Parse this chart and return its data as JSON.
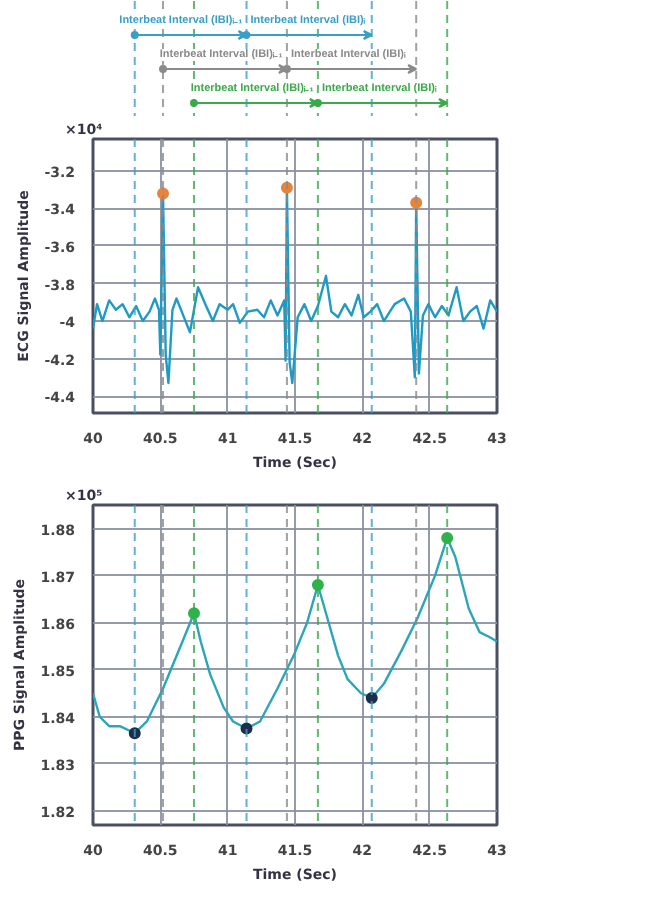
{
  "chart_data": [
    {
      "type": "line",
      "xlabel": "Time (Sec)",
      "ylabel": "ECG Signal Amplitude",
      "xlim": [
        40,
        43
      ],
      "ylim": [
        -4.49,
        -3.03
      ],
      "xticks": [
        40,
        40.5,
        41,
        41.5,
        42,
        42.5,
        43
      ],
      "yticks": [
        -3.2,
        -3.4,
        -3.6,
        -3.8,
        -4,
        -4.2,
        -4.4
      ],
      "grid": true,
      "line_style": "solid",
      "annotations": [
        "×10⁴",
        "Interbeat Interval (IBI)ᵢ₋₁",
        "Interbeat Interval (IBI)ᵢ",
        "Interbeat Interval (IBI)ᵢ₋₁",
        "Interbeat Interval (IBI)ᵢ",
        "Interbeat Interval (IBI)ᵢ₋₁",
        "Interbeat Interval (IBI)ᵢ"
      ],
      "ref_lines": [
        {
          "axis": "x",
          "value": 40.31,
          "color": "#3a9fc8",
          "line_style": "dashed"
        },
        {
          "axis": "x",
          "value": 41.14,
          "color": "#3a9fc8",
          "line_style": "dashed"
        },
        {
          "axis": "x",
          "value": 42.07,
          "color": "#3a9fc8",
          "line_style": "dashed"
        },
        {
          "axis": "x",
          "value": 40.52,
          "color": "#8a8a8a",
          "line_style": "dashed"
        },
        {
          "axis": "x",
          "value": 41.44,
          "color": "#8a8a8a",
          "line_style": "dashed"
        },
        {
          "axis": "x",
          "value": 42.4,
          "color": "#8a8a8a",
          "line_style": "dashed"
        },
        {
          "axis": "x",
          "value": 40.75,
          "color": "#3aaa4a",
          "line_style": "dashed"
        },
        {
          "axis": "x",
          "value": 41.67,
          "color": "#3aaa4a",
          "line_style": "dashed"
        },
        {
          "axis": "x",
          "value": 42.63,
          "color": "#3aaa4a",
          "line_style": "dashed"
        }
      ],
      "series": [
        {
          "color": "#1f9ac4",
          "x": [
            40.0,
            40.03,
            40.07,
            40.12,
            40.17,
            40.22,
            40.27,
            40.32,
            40.37,
            40.42,
            40.46,
            40.49,
            40.5,
            40.52,
            40.54,
            40.56,
            40.59,
            40.62,
            40.67,
            40.72,
            40.78,
            40.84,
            40.89,
            40.94,
            41.0,
            41.04,
            41.09,
            41.15,
            41.22,
            41.27,
            41.32,
            41.37,
            41.42,
            41.43,
            41.44,
            41.46,
            41.48,
            41.52,
            41.57,
            41.62,
            41.67,
            41.73,
            41.77,
            41.82,
            41.87,
            41.92,
            41.97,
            42.01,
            42.06,
            42.11,
            42.16,
            42.24,
            42.31,
            42.36,
            42.39,
            42.4,
            42.42,
            42.45,
            42.49,
            42.54,
            42.59,
            42.64,
            42.7,
            42.75,
            42.8,
            42.85,
            42.9,
            42.95,
            43.0
          ],
          "values": [
            -4.04,
            -3.91,
            -4.0,
            -3.89,
            -3.94,
            -3.91,
            -3.98,
            -3.92,
            -4.0,
            -3.95,
            -3.88,
            -3.94,
            -4.18,
            -3.32,
            -4.18,
            -4.33,
            -3.94,
            -3.88,
            -3.97,
            -4.06,
            -3.82,
            -3.92,
            -4.0,
            -3.91,
            -3.94,
            -3.91,
            -4.01,
            -3.95,
            -3.94,
            -3.98,
            -3.89,
            -3.97,
            -3.89,
            -4.21,
            -3.29,
            -4.22,
            -4.33,
            -3.98,
            -3.91,
            -4.0,
            -3.92,
            -3.76,
            -3.95,
            -3.98,
            -3.91,
            -3.97,
            -3.86,
            -3.98,
            -3.95,
            -3.91,
            -4.0,
            -3.91,
            -3.88,
            -3.95,
            -4.3,
            -3.37,
            -4.28,
            -3.97,
            -3.91,
            -3.98,
            -3.92,
            -3.97,
            -3.82,
            -4.0,
            -3.95,
            -3.92,
            -4.04,
            -3.89,
            -3.95
          ]
        },
        {
          "type": "scatter",
          "marker": "circle",
          "color": "#e8833a",
          "x": [
            40.52,
            41.44,
            42.4
          ],
          "values": [
            -3.32,
            -3.29,
            -3.37
          ]
        }
      ]
    },
    {
      "type": "line",
      "xlabel": "Time (Sec)",
      "ylabel": "PPG Signal Amplitude",
      "xlim": [
        40,
        43
      ],
      "ylim": [
        1.817,
        1.885
      ],
      "xticks": [
        40,
        40.5,
        41,
        41.5,
        42,
        42.5,
        43
      ],
      "yticks": [
        1.82,
        1.83,
        1.84,
        1.85,
        1.86,
        1.87,
        1.88
      ],
      "grid": true,
      "line_style": "solid",
      "annotations": [
        "×10⁵"
      ],
      "ref_lines": [
        {
          "axis": "x",
          "value": 40.31,
          "color": "#3a9fc8",
          "line_style": "dashed"
        },
        {
          "axis": "x",
          "value": 41.14,
          "color": "#3a9fc8",
          "line_style": "dashed"
        },
        {
          "axis": "x",
          "value": 42.07,
          "color": "#3a9fc8",
          "line_style": "dashed"
        },
        {
          "axis": "x",
          "value": 40.52,
          "color": "#8a8a8a",
          "line_style": "dashed"
        },
        {
          "axis": "x",
          "value": 41.44,
          "color": "#8a8a8a",
          "line_style": "dashed"
        },
        {
          "axis": "x",
          "value": 42.4,
          "color": "#8a8a8a",
          "line_style": "dashed"
        },
        {
          "axis": "x",
          "value": 40.75,
          "color": "#3aaa4a",
          "line_style": "dashed"
        },
        {
          "axis": "x",
          "value": 41.67,
          "color": "#3aaa4a",
          "line_style": "dashed"
        },
        {
          "axis": "x",
          "value": 42.63,
          "color": "#3aaa4a",
          "line_style": "dashed"
        }
      ],
      "series": [
        {
          "color": "#2aa6b8",
          "x": [
            40.0,
            40.05,
            40.12,
            40.2,
            40.31,
            40.4,
            40.52,
            40.65,
            40.75,
            40.8,
            40.87,
            40.97,
            41.04,
            41.14,
            41.24,
            41.37,
            41.49,
            41.59,
            41.67,
            41.72,
            41.82,
            41.89,
            41.99,
            42.07,
            42.16,
            42.29,
            42.41,
            42.54,
            42.63,
            42.69,
            42.79,
            42.87,
            42.94,
            43.0
          ],
          "values": [
            1.845,
            1.84,
            1.838,
            1.838,
            1.8365,
            1.839,
            1.846,
            1.855,
            1.862,
            1.856,
            1.849,
            1.842,
            1.839,
            1.8375,
            1.839,
            1.846,
            1.853,
            1.86,
            1.868,
            1.863,
            1.853,
            1.848,
            1.845,
            1.844,
            1.847,
            1.854,
            1.861,
            1.87,
            1.878,
            1.874,
            1.863,
            1.858,
            1.857,
            1.856
          ]
        },
        {
          "type": "scatter",
          "marker": "circle",
          "color": "#2db34a",
          "x": [
            40.75,
            41.67,
            42.63
          ],
          "values": [
            1.862,
            1.868,
            1.878
          ]
        },
        {
          "type": "scatter",
          "marker": "circle",
          "color": "#1c2e4a",
          "x": [
            40.31,
            41.14,
            42.07
          ],
          "values": [
            1.8365,
            1.8375,
            1.844
          ]
        }
      ]
    }
  ]
}
